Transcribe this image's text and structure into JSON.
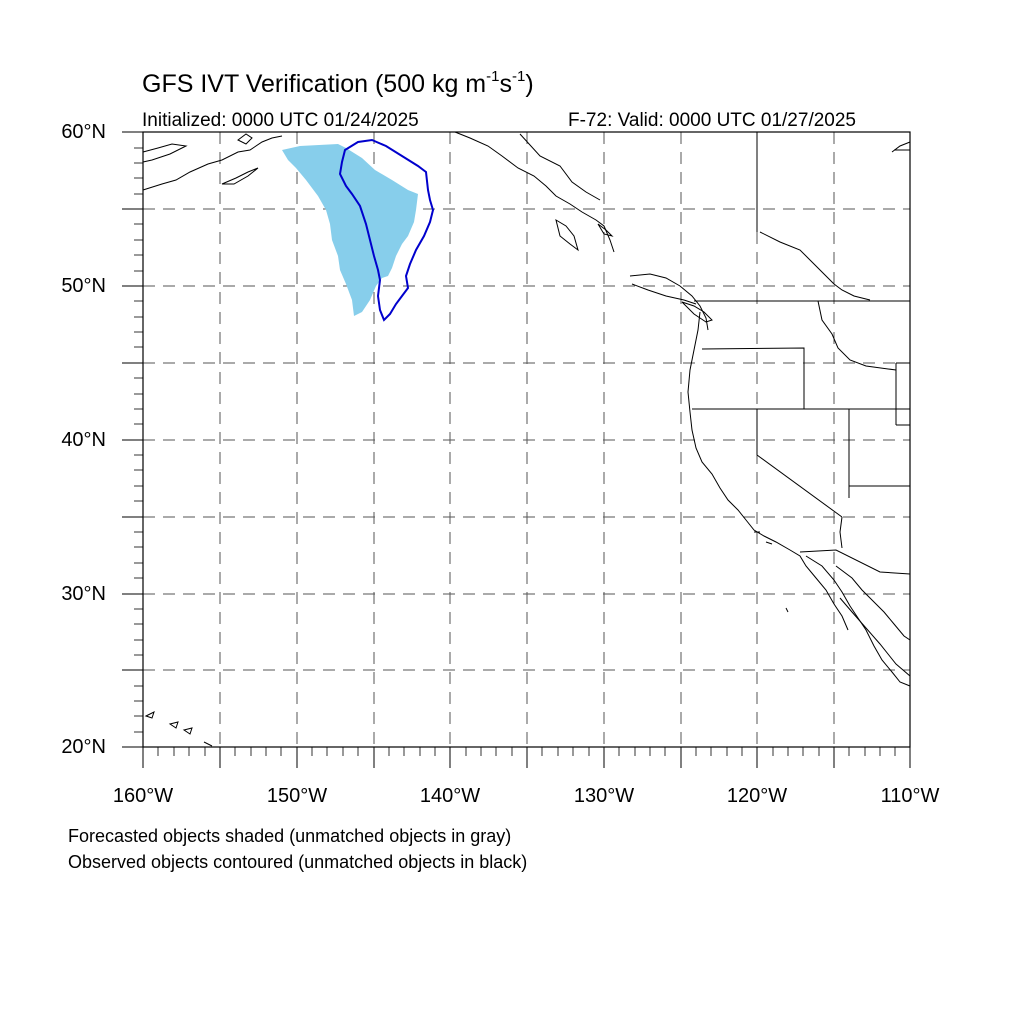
{
  "title": {
    "text": "GFS IVT Verification (500 kg m",
    "exp1": "-1",
    "mid": "s",
    "exp2": "-1",
    "end": ")"
  },
  "initialized": "Initialized: 0000 UTC 01/24/2025",
  "valid": "F-72: Valid: 0000 UTC 01/27/2025",
  "lat_labels": [
    "60°N",
    "50°N",
    "40°N",
    "30°N",
    "20°N"
  ],
  "lon_labels": [
    "160°W",
    "150°W",
    "140°W",
    "130°W",
    "120°W",
    "110°W"
  ],
  "notes": [
    "Forecasted objects shaded (unmatched objects in gray)",
    "Observed objects contoured (unmatched objects in black)"
  ],
  "colors": {
    "forecast_fill": "#87CEEB",
    "observed_contour": "#0000CD",
    "grid": "#555555"
  },
  "map_extent": {
    "lon": [
      -160,
      -110
    ],
    "lat": [
      20,
      60
    ]
  }
}
